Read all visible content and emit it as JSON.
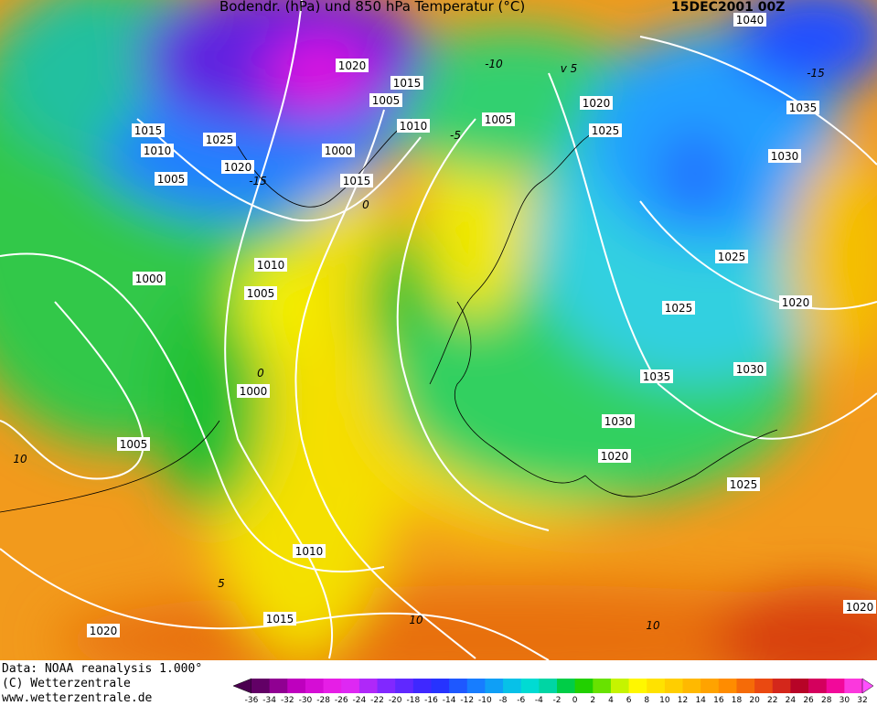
{
  "header": {
    "title": "Bodendr. (hPa) und 850 hPa Temperatur (°C)",
    "date": "15DEC2001 00Z"
  },
  "map": {
    "isobar_labels": [
      "1040",
      "1020",
      "1015",
      "1005",
      "1010",
      "1005",
      "1000",
      "1015",
      "1025",
      "1020",
      "1015",
      "1010",
      "1005",
      "1000",
      "1010",
      "1005",
      "1000",
      "1005",
      "1010",
      "1015",
      "1020",
      "1020",
      "1025",
      "1030",
      "1035",
      "1025",
      "1025",
      "1020",
      "1035",
      "1030",
      "1030",
      "1020",
      "1025",
      "1020"
    ],
    "temperature_labels": [
      "-10",
      "-15",
      "-15",
      "-5",
      "0",
      "0",
      "5",
      "10",
      "10",
      "10",
      "v 5"
    ]
  },
  "footer": {
    "lines": [
      "Data: NOAA reanalysis 1.000°",
      "(C) Wetterzentrale",
      "www.wetterzentrale.de"
    ]
  },
  "legend": {
    "ticks": [
      -36,
      -34,
      -32,
      -30,
      -28,
      -26,
      -24,
      -22,
      -20,
      -18,
      -16,
      -14,
      -12,
      -10,
      -8,
      -6,
      -4,
      -2,
      0,
      2,
      4,
      6,
      8,
      10,
      12,
      14,
      16,
      18,
      20,
      22,
      24,
      26,
      28,
      30,
      32
    ]
  }
}
